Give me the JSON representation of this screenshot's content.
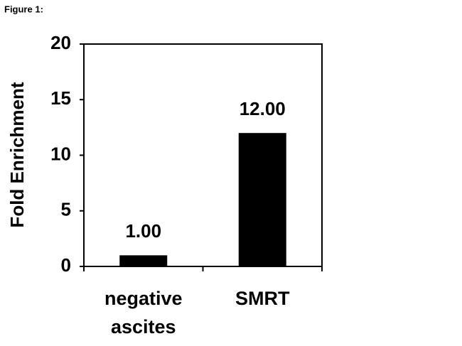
{
  "chart_data": {
    "type": "bar",
    "title": "Figure 1:",
    "y_label": "Fold Enrichment",
    "categories": [
      "negative ascites",
      "SMRT"
    ],
    "values": [
      1,
      12
    ],
    "value_labels": [
      "1.00",
      "12.00"
    ],
    "color": "#000000",
    "ylim": [
      0,
      20
    ],
    "yticks": [
      0,
      5,
      10,
      15,
      20
    ],
    "grid": false
  }
}
